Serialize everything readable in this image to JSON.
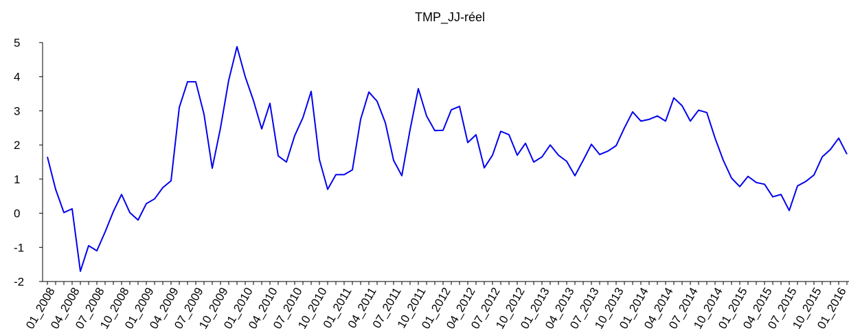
{
  "chart_data": {
    "type": "line",
    "title": "TMP_JJ-réel",
    "categories": [
      "01_2008",
      null,
      null,
      "04_2008",
      null,
      null,
      "07_2008",
      null,
      null,
      "10_2008",
      null,
      null,
      "01_2009",
      null,
      null,
      "04_2009",
      null,
      null,
      "07_2009",
      null,
      null,
      "10_2009",
      null,
      null,
      "01_2010",
      null,
      null,
      "04_2010",
      null,
      null,
      "07_2010",
      null,
      null,
      "10_2010",
      null,
      null,
      "01_2011",
      null,
      null,
      "04_2011",
      null,
      null,
      "07_2011",
      null,
      null,
      "10_2011",
      null,
      null,
      "01_2012",
      null,
      null,
      "04_2012",
      null,
      null,
      "07_2012",
      null,
      null,
      "10_2012",
      null,
      null,
      "01_2013",
      null,
      null,
      "04_2013",
      null,
      null,
      "07_2013",
      null,
      null,
      "10_2013",
      null,
      null,
      "01_2014",
      null,
      null,
      "04_2014",
      null,
      null,
      "07_2014",
      null,
      null,
      "10_2014",
      null,
      null,
      "01_2015",
      null,
      null,
      "04_2015",
      null,
      null,
      "07_2015",
      null,
      null,
      "10_2015",
      null,
      null,
      "01_2016",
      null
    ],
    "values": [
      1.65,
      0.7,
      0.02,
      0.13,
      -1.7,
      -0.95,
      -1.1,
      -0.55,
      0.05,
      0.55,
      0.02,
      -0.2,
      0.28,
      0.42,
      0.75,
      0.95,
      3.1,
      3.85,
      3.85,
      2.9,
      1.32,
      2.5,
      3.9,
      4.88,
      4.0,
      3.3,
      2.47,
      3.22,
      1.68,
      1.5,
      2.27,
      2.8,
      3.57,
      1.57,
      0.7,
      1.13,
      1.13,
      1.27,
      2.75,
      3.55,
      3.28,
      2.65,
      1.55,
      1.1,
      2.45,
      3.65,
      2.85,
      2.42,
      2.43,
      3.03,
      3.13,
      2.07,
      2.3,
      1.33,
      1.7,
      2.4,
      2.3,
      1.7,
      2.05,
      1.5,
      1.65,
      2.0,
      1.7,
      1.52,
      1.1,
      1.55,
      2.02,
      1.72,
      1.82,
      1.98,
      2.5,
      2.97,
      2.7,
      2.75,
      2.85,
      2.7,
      3.38,
      3.15,
      2.7,
      3.02,
      2.95,
      2.2,
      1.55,
      1.03,
      0.78,
      1.08,
      0.9,
      0.85,
      0.48,
      0.55,
      0.08,
      0.8,
      0.93,
      1.12,
      1.65,
      1.87,
      2.2,
      1.73
    ],
    "color": "#0000ee",
    "ylim": [
      -2,
      5
    ],
    "yticks": [
      -2,
      -1,
      0,
      1,
      2,
      3,
      4,
      5
    ],
    "grid": false
  }
}
